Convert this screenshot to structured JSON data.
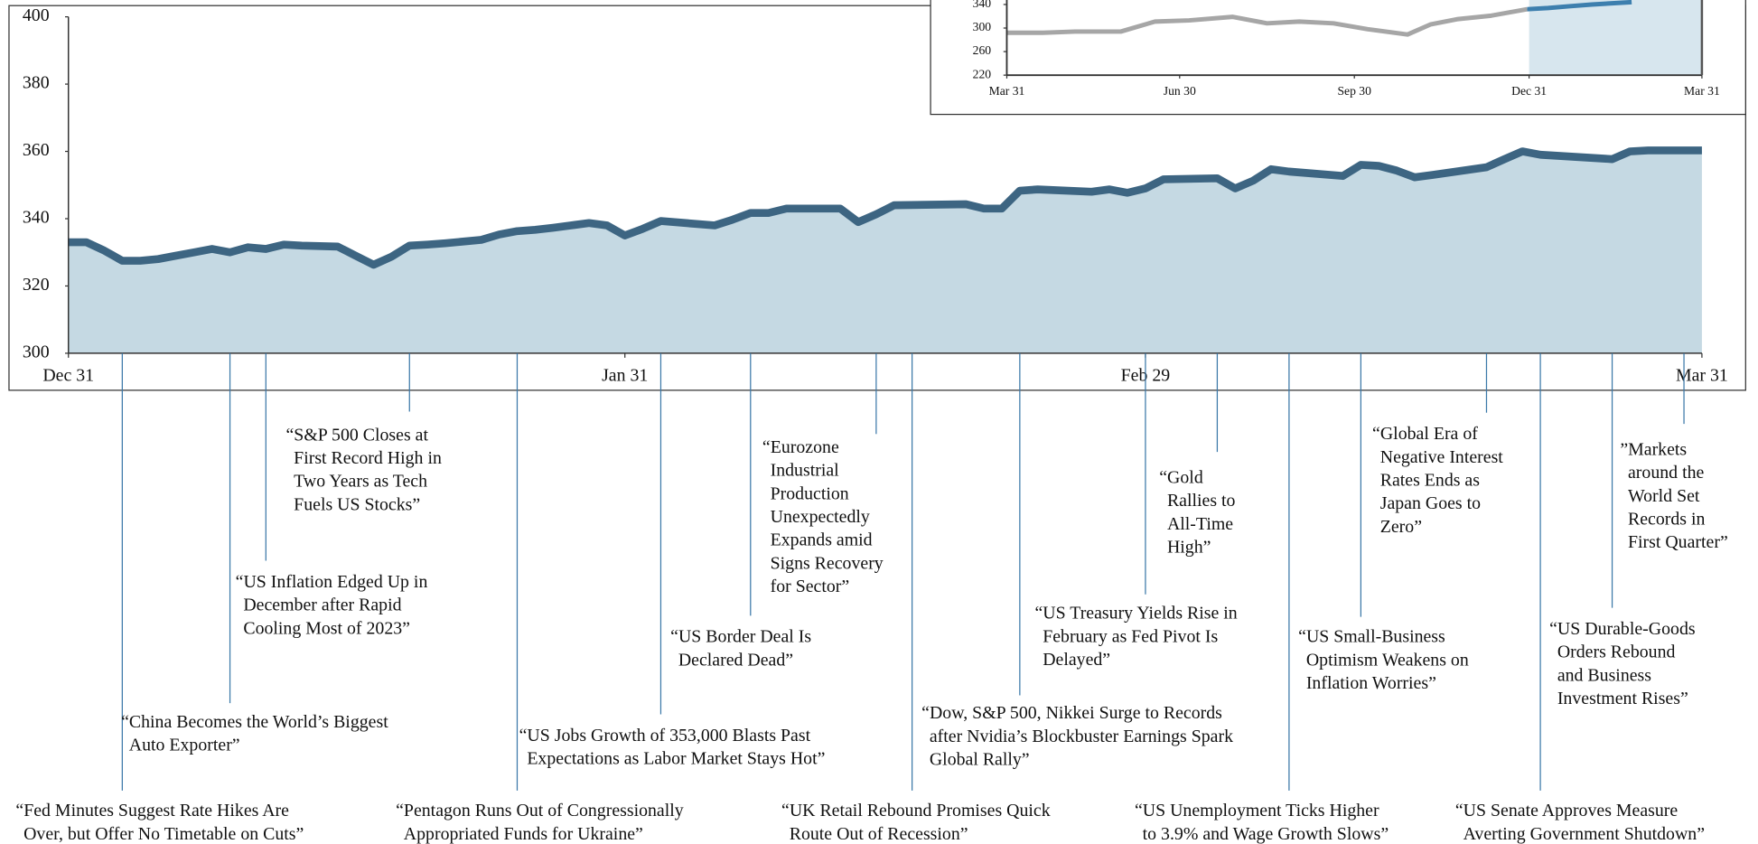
{
  "chart_data": [
    {
      "type": "area",
      "x": [
        0,
        1,
        2,
        3,
        4,
        5,
        6,
        7,
        8,
        9,
        10,
        11,
        12,
        13,
        15,
        16,
        17,
        18,
        19,
        20,
        21,
        23,
        24,
        25,
        26,
        27,
        28,
        29,
        30,
        31,
        32,
        33,
        36,
        37,
        38,
        39,
        40,
        43,
        44,
        45,
        46,
        50,
        51,
        52,
        53,
        54,
        57,
        58,
        59,
        60,
        61,
        64,
        65,
        66,
        67,
        68,
        71,
        72,
        73,
        74,
        75,
        76,
        79,
        80,
        81,
        82,
        86,
        87,
        88,
        91
      ],
      "values": [
        333,
        333,
        330.5,
        327.5,
        327.5,
        328,
        329,
        330,
        331,
        330,
        331.5,
        331,
        332.3,
        332,
        331.7,
        329,
        326.3,
        328.7,
        332,
        332.3,
        332.7,
        333.7,
        335.3,
        336.3,
        336.7,
        337.3,
        338,
        338.7,
        338,
        335,
        337,
        339.3,
        338,
        339.7,
        341.7,
        341.7,
        343,
        343,
        339,
        341.3,
        344,
        344.3,
        343,
        343,
        348.3,
        348.7,
        348,
        348.7,
        347.7,
        349,
        351.7,
        352,
        349,
        351.3,
        354.7,
        354,
        352.7,
        356,
        355.7,
        354.3,
        352.3,
        353,
        355.3,
        357.7,
        360,
        359,
        357.7,
        360,
        360.3,
        360.3
      ],
      "color": "#3d6582",
      "fill": "#c5d9e3",
      "xlim": [
        0,
        91
      ],
      "xticks": [
        {
          "value": 0,
          "label": "Dec 31"
        },
        {
          "value": 31,
          "label": "Jan 31"
        },
        {
          "value": 60,
          "label": "Feb 29"
        },
        {
          "value": 91,
          "label": "Mar 31"
        }
      ],
      "ylim": [
        300,
        400
      ],
      "yticks": [
        300,
        320,
        340,
        360,
        380,
        400
      ],
      "annotation_color": "#3b78a8",
      "annotations": [
        {
          "x": 3,
          "lines": [
            "“Fed Minutes Suggest Rate Hikes Are",
            "Over, but Offer No Timetable on Cuts”"
          ]
        },
        {
          "x": 9,
          "lines": [
            "“China Becomes the World’s Biggest",
            "Auto Exporter”"
          ]
        },
        {
          "x": 11,
          "lines": [
            "“US Inflation Edged Up in",
            "December after Rapid",
            "Cooling Most of 2023”"
          ]
        },
        {
          "x": 19,
          "lines": [
            "“S&P 500 Closes at",
            "First Record High in",
            "Two Years as Tech",
            "Fuels US Stocks”"
          ]
        },
        {
          "x": 25,
          "lines": [
            "“Pentagon Runs Out of Congressionally",
            "Appropriated Funds for Ukraine”"
          ]
        },
        {
          "x": 33,
          "lines": [
            "“US Jobs Growth of 353,000 Blasts Past",
            "Expectations as Labor Market Stays Hot”"
          ]
        },
        {
          "x": 38,
          "lines": [
            "“US Border Deal Is",
            "Declared Dead”"
          ]
        },
        {
          "x": 45,
          "lines": [
            "“Eurozone",
            "Industrial",
            "Production",
            "Unexpectedly",
            "Expands amid",
            "Signs Recovery",
            "for Sector”"
          ]
        },
        {
          "x": 47,
          "lines": [
            "“UK Retail Rebound Promises Quick",
            "Route Out of Recession”"
          ]
        },
        {
          "x": 53,
          "lines": [
            "“Dow, S&P 500, Nikkei Surge to Records",
            "after Nvidia’s Blockbuster Earnings Spark",
            "Global Rally”"
          ]
        },
        {
          "x": 60,
          "lines": [
            "“US Treasury Yields Rise in",
            "February as Fed Pivot Is",
            "Delayed”"
          ]
        },
        {
          "x": 64,
          "lines": [
            "“Gold",
            "Rallies to",
            "All-Time",
            "High”"
          ]
        },
        {
          "x": 68,
          "lines": [
            "“US Unemployment Ticks Higher",
            "to 3.9% and Wage Growth Slows”"
          ]
        },
        {
          "x": 72,
          "lines": [
            "“US Small-Business",
            "Optimism Weakens on",
            "Inflation Worries”"
          ]
        },
        {
          "x": 79,
          "lines": [
            "“Global Era of",
            "Negative Interest",
            "Rates Ends as",
            "Japan Goes to",
            "Zero”"
          ]
        },
        {
          "x": 82,
          "lines": [
            "“US Senate Approves Measure",
            "Averting Government Shutdown”"
          ]
        },
        {
          "x": 86,
          "lines": [
            "“US Durable-Goods",
            "Orders Rebound",
            "and Business",
            "Investment Rises”"
          ]
        },
        {
          "x": 90,
          "lines": [
            "”Markets",
            "around the",
            "World Set",
            "Records in",
            "First Quarter”"
          ]
        }
      ]
    },
    {
      "type": "line",
      "series": [
        {
          "color": "#a6a6a6",
          "x": [
            0,
            19,
            36,
            60,
            78,
            96,
            119,
            137,
            154,
            172,
            190,
            211,
            223,
            237,
            255,
            274
          ],
          "values": [
            292,
            292,
            294,
            294,
            311,
            313,
            319,
            308,
            311,
            308,
            298,
            289,
            306,
            315,
            321,
            332
          ]
        },
        {
          "color": "#3d7fae",
          "x": [
            274,
            285,
            296,
            308,
            329
          ],
          "values": [
            332,
            334,
            337,
            340,
            344
          ]
        }
      ],
      "highlight": [
        275,
        366
      ],
      "highlight_color": "#d7e6ee",
      "xlim": [
        0,
        366
      ],
      "xticks": [
        {
          "value": 0,
          "label": "Mar 31"
        },
        {
          "value": 91,
          "label": "Jun 30"
        },
        {
          "value": 183,
          "label": "Sep 30"
        },
        {
          "value": 275,
          "label": "Dec 31"
        },
        {
          "value": 366,
          "label": "Mar 31"
        }
      ],
      "ylim": [
        220,
        340
      ],
      "yticks": [
        220,
        260,
        300,
        340
      ]
    }
  ]
}
